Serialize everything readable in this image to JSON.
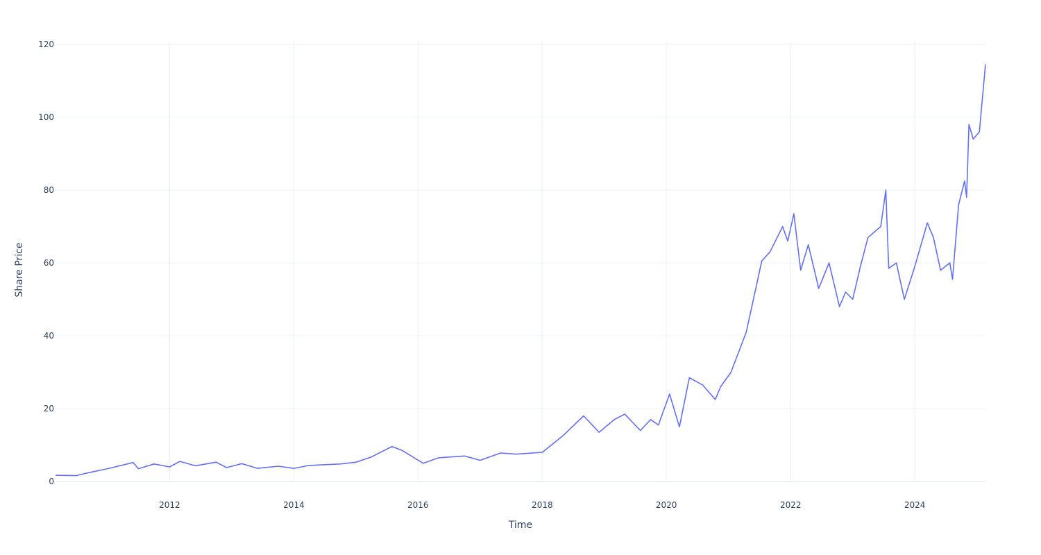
{
  "chart_data": {
    "type": "line",
    "xlabel": "Time",
    "ylabel": "Share Price",
    "xlim": [
      "2010-03-01",
      "2025-02-20"
    ],
    "ylim": [
      0,
      120
    ],
    "x_ticks": [
      {
        "date": "2012-01-01",
        "label": "2012"
      },
      {
        "date": "2014-01-01",
        "label": "2014"
      },
      {
        "date": "2016-01-01",
        "label": "2016"
      },
      {
        "date": "2018-01-01",
        "label": "2018"
      },
      {
        "date": "2020-01-01",
        "label": "2020"
      },
      {
        "date": "2022-01-01",
        "label": "2022"
      },
      {
        "date": "2024-01-01",
        "label": "2024"
      }
    ],
    "y_ticks": [
      0,
      20,
      40,
      60,
      80,
      100,
      120
    ],
    "grid": true,
    "legend": false,
    "line_color": "#636efa",
    "series": [
      {
        "x": [
          "2010-03-01",
          "2010-07-01",
          "2010-09-01",
          "2011-01-01",
          "2011-06-01",
          "2011-07-01",
          "2011-10-01",
          "2012-01-01",
          "2012-03-01",
          "2012-06-01",
          "2012-10-01",
          "2012-12-01",
          "2013-03-01",
          "2013-06-01",
          "2013-10-01",
          "2014-01-01",
          "2014-04-01",
          "2014-10-01",
          "2015-01-01",
          "2015-04-01",
          "2015-08-01",
          "2015-10-01",
          "2016-02-01",
          "2016-05-01",
          "2016-10-01",
          "2017-01-01",
          "2017-05-01",
          "2017-08-01",
          "2018-01-01",
          "2018-05-01",
          "2018-09-01",
          "2018-12-01",
          "2019-03-01",
          "2019-05-01",
          "2019-08-01",
          "2019-10-01",
          "2019-11-15",
          "2020-01-20",
          "2020-03-18",
          "2020-05-15",
          "2020-08-01",
          "2020-10-15",
          "2020-11-15",
          "2021-01-15",
          "2021-04-15",
          "2021-07-15",
          "2021-09-01",
          "2021-11-15",
          "2021-12-15",
          "2022-01-20",
          "2022-03-01",
          "2022-04-15",
          "2022-06-15",
          "2022-08-15",
          "2022-10-15",
          "2022-11-20",
          "2023-01-01",
          "2023-02-15",
          "2023-04-01",
          "2023-06-15",
          "2023-07-15",
          "2023-08-01",
          "2023-09-15",
          "2023-11-01",
          "2024-01-01",
          "2024-03-15",
          "2024-04-20",
          "2024-06-01",
          "2024-07-25",
          "2024-08-10",
          "2024-09-15",
          "2024-10-20",
          "2024-11-01",
          "2024-11-15",
          "2024-12-10",
          "2025-01-15",
          "2025-02-20"
        ],
        "values": [
          1.7,
          1.6,
          2.3,
          3.5,
          5.2,
          3.5,
          4.8,
          4.0,
          5.5,
          4.3,
          5.3,
          3.8,
          4.9,
          3.6,
          4.2,
          3.6,
          4.4,
          4.8,
          5.3,
          6.7,
          9.6,
          8.5,
          5.0,
          6.5,
          7.0,
          5.8,
          7.8,
          7.5,
          8.0,
          12.5,
          18.0,
          13.5,
          17.0,
          18.5,
          14.0,
          17.0,
          15.5,
          24.0,
          15.0,
          28.5,
          26.5,
          22.5,
          26.0,
          30.0,
          41.0,
          60.5,
          63.0,
          70.0,
          66.0,
          73.5,
          58.0,
          65.0,
          53.0,
          60.0,
          48.0,
          52.0,
          50.0,
          59.0,
          67.0,
          70.0,
          80.0,
          58.5,
          60.0,
          50.0,
          59.0,
          71.0,
          67.0,
          58.0,
          60.0,
          55.5,
          76.0,
          82.5,
          78.0,
          98.0,
          94.0,
          96.0,
          114.5
        ]
      }
    ]
  }
}
